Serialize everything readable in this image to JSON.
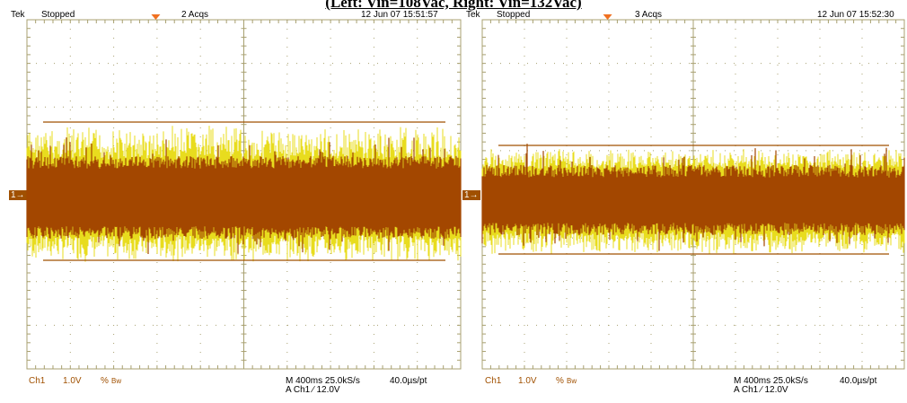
{
  "title": "(Left: Vin=108Vac, Right: Vin=132Vac)",
  "colors": {
    "grid": "#a8a070",
    "trace_main": "#a34700",
    "trace_peak": "#e8dc1e",
    "marker": "#f07020",
    "level": "#a05000"
  },
  "scopes": [
    {
      "brand": "Tek",
      "state": "Stopped",
      "acqs": "2 Acqs",
      "datetime": "12 Jun 07 15:51:57",
      "channel_marker": "1→",
      "ch_label": "Ch1",
      "volts_div": "1.0V",
      "coupling": "%",
      "bw": "Bw",
      "timebase": "M 400ms 25.0kS/s",
      "sample_interval": "40.0µs/pt",
      "trigger": "A  Ch1  ∕  12.0V"
    },
    {
      "brand": "Tek",
      "state": "Stopped",
      "acqs": "3 Acqs",
      "datetime": "12 Jun 07 15:52:30",
      "channel_marker": "1→",
      "ch_label": "Ch1",
      "volts_div": "1.0V",
      "coupling": "%",
      "bw": "Bw",
      "timebase": "M 400ms 25.0kS/s",
      "sample_interval": "40.0µs/pt",
      "trigger": "A  Ch1  ∕  12.0V"
    }
  ]
}
